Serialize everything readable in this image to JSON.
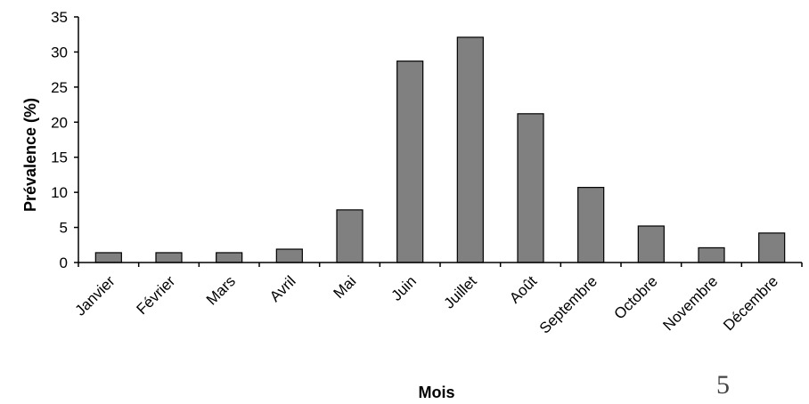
{
  "chart_data": {
    "type": "bar",
    "categories": [
      "Janvier",
      "Février",
      "Mars",
      "Avril",
      "Mai",
      "Juin",
      "Juillet",
      "Août",
      "Septembre",
      "Octobre",
      "Novembre",
      "Décembre"
    ],
    "values": [
      1.4,
      1.4,
      1.4,
      1.9,
      7.5,
      28.7,
      32.1,
      21.2,
      10.7,
      5.2,
      2.1,
      4.2
    ],
    "title": "",
    "xlabel": "Mois",
    "ylabel": "Prévalence (%)",
    "ylim": [
      0,
      35
    ],
    "yticks": [
      0,
      5,
      10,
      15,
      20,
      25,
      30,
      35
    ],
    "grid": false,
    "bar_color": "#808080",
    "bar_edge_color": "#000000"
  },
  "page_number": "5"
}
